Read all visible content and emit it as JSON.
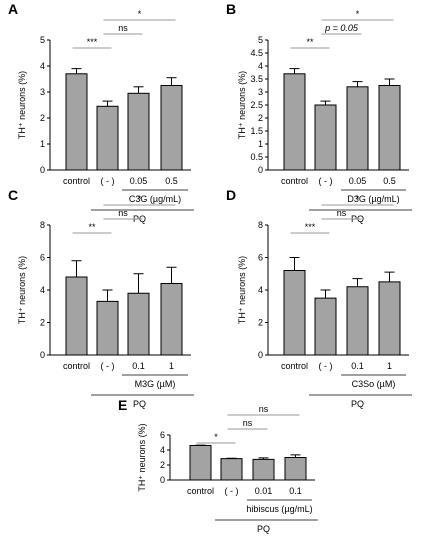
{
  "chart_data": [
    {
      "type": "bar",
      "panel": "A",
      "ylabel": "TH⁺ neurons (%)",
      "ylim": [
        0,
        5
      ],
      "yticks": [
        0,
        1,
        2,
        3,
        4,
        5
      ],
      "categories": [
        "control",
        "( - )",
        "0.05",
        "0.5"
      ],
      "values": [
        3.7,
        2.45,
        2.95,
        3.25
      ],
      "errors": [
        0.2,
        0.2,
        0.25,
        0.3
      ],
      "treatment_label": "C3G (µg/mL)",
      "group_label": "PQ",
      "comparisons": [
        {
          "from": 0,
          "to": 1,
          "label": "***"
        },
        {
          "from": 1,
          "to": 2,
          "label": "ns"
        },
        {
          "from": 1,
          "to": 3,
          "label": "*"
        }
      ]
    },
    {
      "type": "bar",
      "panel": "B",
      "ylabel": "TH⁺ neurons (%)",
      "ylim": [
        0,
        5
      ],
      "yticks": [
        0,
        0.5,
        1,
        1.5,
        2,
        2.5,
        3,
        3.5,
        4,
        4.5,
        5
      ],
      "categories": [
        "control",
        "( - )",
        "0.05",
        "0.5"
      ],
      "values": [
        3.7,
        2.5,
        3.2,
        3.25
      ],
      "errors": [
        0.2,
        0.15,
        0.2,
        0.25
      ],
      "treatment_label": "D3G (µg/mL)",
      "group_label": "PQ",
      "comparisons": [
        {
          "from": 0,
          "to": 1,
          "label": "**"
        },
        {
          "from": 1,
          "to": 2,
          "label": "p = 0.05"
        },
        {
          "from": 1,
          "to": 3,
          "label": "*"
        }
      ]
    },
    {
      "type": "bar",
      "panel": "C",
      "ylabel": "TH⁺ neurons (%)",
      "ylim": [
        0,
        8
      ],
      "yticks": [
        0,
        2,
        4,
        6,
        8
      ],
      "categories": [
        "control",
        "( - )",
        "0.1",
        "1"
      ],
      "values": [
        4.8,
        3.3,
        3.8,
        4.4
      ],
      "errors": [
        1.0,
        0.7,
        1.2,
        1.0
      ],
      "treatment_label": "M3G (µM)",
      "group_label": "PQ",
      "comparisons": [
        {
          "from": 0,
          "to": 1,
          "label": "**"
        },
        {
          "from": 1,
          "to": 2,
          "label": "ns"
        },
        {
          "from": 1,
          "to": 3,
          "label": "*"
        }
      ]
    },
    {
      "type": "bar",
      "panel": "D",
      "ylabel": "TH⁺ neurons (%)",
      "ylim": [
        0,
        8
      ],
      "yticks": [
        0,
        2,
        4,
        6,
        8
      ],
      "categories": [
        "control",
        "( - )",
        "0.1",
        "1"
      ],
      "values": [
        5.2,
        3.5,
        4.2,
        4.5
      ],
      "errors": [
        0.8,
        0.5,
        0.5,
        0.6
      ],
      "treatment_label": "C3So (µM)",
      "group_label": "PQ",
      "comparisons": [
        {
          "from": 0,
          "to": 1,
          "label": "***"
        },
        {
          "from": 1,
          "to": 2,
          "label": "ns"
        },
        {
          "from": 1,
          "to": 3,
          "label": "*"
        }
      ]
    },
    {
      "type": "bar",
      "panel": "E",
      "ylabel": "TH⁺ neurons (%)",
      "ylim": [
        0,
        6
      ],
      "yticks": [
        0,
        2,
        4,
        6
      ],
      "categories": [
        "control",
        "( - )",
        "0.01",
        "0.1"
      ],
      "values": [
        4.6,
        2.85,
        2.75,
        3.0
      ],
      "errors": [
        0.05,
        0.05,
        0.2,
        0.35
      ],
      "treatment_label": "hibiscus (µg/mL)",
      "group_label": "PQ",
      "comparisons": [
        {
          "from": 0,
          "to": 1,
          "label": "*"
        },
        {
          "from": 1,
          "to": 2,
          "label": "ns"
        },
        {
          "from": 1,
          "to": 3,
          "label": "ns"
        }
      ]
    }
  ]
}
